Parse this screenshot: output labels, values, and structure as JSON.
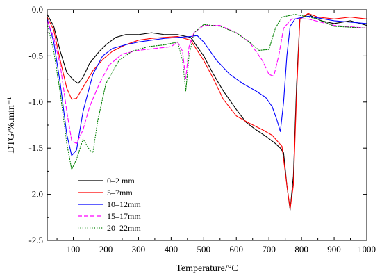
{
  "chart_data": {
    "type": "line",
    "xlabel": "Temperature/°C",
    "ylabel": "DTG/%.min⁻¹",
    "xlim": [
      20,
      1000
    ],
    "ylim": [
      -2.5,
      0.0
    ],
    "x_ticks": [
      100,
      200,
      300,
      400,
      500,
      600,
      700,
      800,
      900,
      1000
    ],
    "y_ticks": [
      0.0,
      -0.5,
      -1.0,
      -1.5,
      -2.0,
      -2.5
    ],
    "x_tick_labels": [
      "100",
      "200",
      "300",
      "400",
      "500",
      "600",
      "700",
      "800",
      "900",
      "1000"
    ],
    "y_tick_labels": [
      "0.0",
      "-0.5",
      "-1.0",
      "-1.5",
      "-2.0",
      "-2.5"
    ],
    "grid": false,
    "legend_position": "bottom-left",
    "series": [
      {
        "name": "0–2 mm",
        "color": "#000000",
        "dash": "solid",
        "points": [
          [
            20,
            -0.05
          ],
          [
            40,
            -0.18
          ],
          [
            60,
            -0.45
          ],
          [
            80,
            -0.68
          ],
          [
            100,
            -0.76
          ],
          [
            115,
            -0.8
          ],
          [
            130,
            -0.73
          ],
          [
            150,
            -0.58
          ],
          [
            180,
            -0.45
          ],
          [
            200,
            -0.38
          ],
          [
            230,
            -0.3
          ],
          [
            260,
            -0.27
          ],
          [
            300,
            -0.27
          ],
          [
            340,
            -0.25
          ],
          [
            380,
            -0.27
          ],
          [
            420,
            -0.27
          ],
          [
            460,
            -0.3
          ],
          [
            500,
            -0.5
          ],
          [
            530,
            -0.7
          ],
          [
            560,
            -0.88
          ],
          [
            600,
            -1.08
          ],
          [
            630,
            -1.22
          ],
          [
            660,
            -1.3
          ],
          [
            690,
            -1.37
          ],
          [
            720,
            -1.45
          ],
          [
            735,
            -1.5
          ],
          [
            745,
            -1.55
          ],
          [
            755,
            -1.9
          ],
          [
            765,
            -2.17
          ],
          [
            775,
            -1.8
          ],
          [
            785,
            -0.8
          ],
          [
            795,
            -0.1
          ],
          [
            820,
            -0.05
          ],
          [
            860,
            -0.12
          ],
          [
            900,
            -0.15
          ],
          [
            950,
            -0.12
          ],
          [
            1000,
            -0.17
          ]
        ]
      },
      {
        "name": "5–7mm",
        "color": "#ff0000",
        "dash": "solid",
        "points": [
          [
            20,
            -0.08
          ],
          [
            40,
            -0.22
          ],
          [
            60,
            -0.55
          ],
          [
            80,
            -0.85
          ],
          [
            95,
            -0.97
          ],
          [
            110,
            -0.96
          ],
          [
            130,
            -0.84
          ],
          [
            160,
            -0.66
          ],
          [
            190,
            -0.54
          ],
          [
            220,
            -0.45
          ],
          [
            260,
            -0.38
          ],
          [
            300,
            -0.33
          ],
          [
            340,
            -0.31
          ],
          [
            380,
            -0.3
          ],
          [
            420,
            -0.29
          ],
          [
            460,
            -0.33
          ],
          [
            500,
            -0.55
          ],
          [
            530,
            -0.75
          ],
          [
            560,
            -0.97
          ],
          [
            600,
            -1.15
          ],
          [
            640,
            -1.23
          ],
          [
            680,
            -1.3
          ],
          [
            710,
            -1.36
          ],
          [
            740,
            -1.48
          ],
          [
            755,
            -1.9
          ],
          [
            765,
            -2.16
          ],
          [
            775,
            -1.9
          ],
          [
            785,
            -0.9
          ],
          [
            795,
            -0.1
          ],
          [
            820,
            -0.04
          ],
          [
            850,
            -0.08
          ],
          [
            900,
            -0.1
          ],
          [
            950,
            -0.08
          ],
          [
            1000,
            -0.1
          ]
        ]
      },
      {
        "name": "10–12mm",
        "color": "#0000ff",
        "dash": "solid",
        "points": [
          [
            20,
            -0.1
          ],
          [
            40,
            -0.35
          ],
          [
            60,
            -0.8
          ],
          [
            80,
            -1.35
          ],
          [
            95,
            -1.58
          ],
          [
            110,
            -1.52
          ],
          [
            130,
            -1.1
          ],
          [
            160,
            -0.7
          ],
          [
            190,
            -0.5
          ],
          [
            220,
            -0.42
          ],
          [
            260,
            -0.38
          ],
          [
            300,
            -0.35
          ],
          [
            340,
            -0.33
          ],
          [
            380,
            -0.31
          ],
          [
            420,
            -0.3
          ],
          [
            460,
            -0.29
          ],
          [
            480,
            -0.28
          ],
          [
            500,
            -0.35
          ],
          [
            540,
            -0.55
          ],
          [
            580,
            -0.7
          ],
          [
            620,
            -0.8
          ],
          [
            660,
            -0.88
          ],
          [
            690,
            -0.95
          ],
          [
            710,
            -1.05
          ],
          [
            725,
            -1.2
          ],
          [
            735,
            -1.32
          ],
          [
            745,
            -1.0
          ],
          [
            755,
            -0.5
          ],
          [
            765,
            -0.18
          ],
          [
            780,
            -0.1
          ],
          [
            820,
            -0.07
          ],
          [
            900,
            -0.12
          ],
          [
            1000,
            -0.15
          ]
        ]
      },
      {
        "name": "15–17mm",
        "color": "#ff00ff",
        "dash": "dashed",
        "points": [
          [
            20,
            -0.12
          ],
          [
            40,
            -0.3
          ],
          [
            60,
            -0.6
          ],
          [
            80,
            -1.1
          ],
          [
            95,
            -1.42
          ],
          [
            110,
            -1.45
          ],
          [
            130,
            -1.3
          ],
          [
            150,
            -1.05
          ],
          [
            180,
            -0.8
          ],
          [
            210,
            -0.6
          ],
          [
            250,
            -0.48
          ],
          [
            300,
            -0.44
          ],
          [
            350,
            -0.42
          ],
          [
            400,
            -0.4
          ],
          [
            420,
            -0.35
          ],
          [
            435,
            -0.45
          ],
          [
            445,
            -0.75
          ],
          [
            455,
            -0.4
          ],
          [
            470,
            -0.25
          ],
          [
            500,
            -0.17
          ],
          [
            550,
            -0.17
          ],
          [
            600,
            -0.25
          ],
          [
            640,
            -0.35
          ],
          [
            680,
            -0.55
          ],
          [
            700,
            -0.7
          ],
          [
            715,
            -0.72
          ],
          [
            730,
            -0.5
          ],
          [
            745,
            -0.2
          ],
          [
            770,
            -0.1
          ],
          [
            820,
            -0.1
          ],
          [
            900,
            -0.17
          ],
          [
            1000,
            -0.2
          ]
        ]
      },
      {
        "name": "20–22mm",
        "color": "#008000",
        "dash": "dotted",
        "points": [
          [
            20,
            -0.15
          ],
          [
            40,
            -0.45
          ],
          [
            60,
            -0.9
          ],
          [
            80,
            -1.45
          ],
          [
            95,
            -1.73
          ],
          [
            110,
            -1.62
          ],
          [
            130,
            -1.4
          ],
          [
            150,
            -1.52
          ],
          [
            160,
            -1.55
          ],
          [
            175,
            -1.2
          ],
          [
            200,
            -0.8
          ],
          [
            240,
            -0.55
          ],
          [
            280,
            -0.45
          ],
          [
            330,
            -0.4
          ],
          [
            380,
            -0.38
          ],
          [
            420,
            -0.35
          ],
          [
            435,
            -0.55
          ],
          [
            445,
            -0.88
          ],
          [
            455,
            -0.5
          ],
          [
            470,
            -0.25
          ],
          [
            500,
            -0.16
          ],
          [
            550,
            -0.18
          ],
          [
            600,
            -0.25
          ],
          [
            640,
            -0.35
          ],
          [
            670,
            -0.44
          ],
          [
            700,
            -0.43
          ],
          [
            720,
            -0.2
          ],
          [
            740,
            -0.08
          ],
          [
            780,
            -0.05
          ],
          [
            850,
            -0.1
          ],
          [
            900,
            -0.18
          ],
          [
            1000,
            -0.2
          ]
        ]
      }
    ]
  }
}
